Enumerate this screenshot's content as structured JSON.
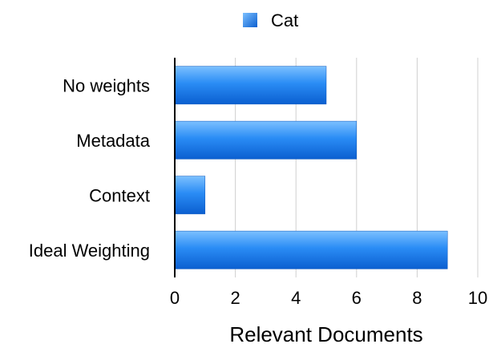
{
  "chart_data": {
    "type": "bar",
    "orientation": "horizontal",
    "categories": [
      "No weights",
      "Metadata",
      "Context",
      "Ideal Weighting"
    ],
    "series": [
      {
        "name": "Cat",
        "values": [
          5,
          6,
          1,
          9
        ],
        "color": "#1f7ee8"
      }
    ],
    "xlabel": "Relevant Documents",
    "ylabel": "",
    "xlim": [
      0,
      10
    ],
    "xticks": [
      0,
      2,
      4,
      6,
      8,
      10
    ],
    "grid": true,
    "legend_position": "top"
  }
}
